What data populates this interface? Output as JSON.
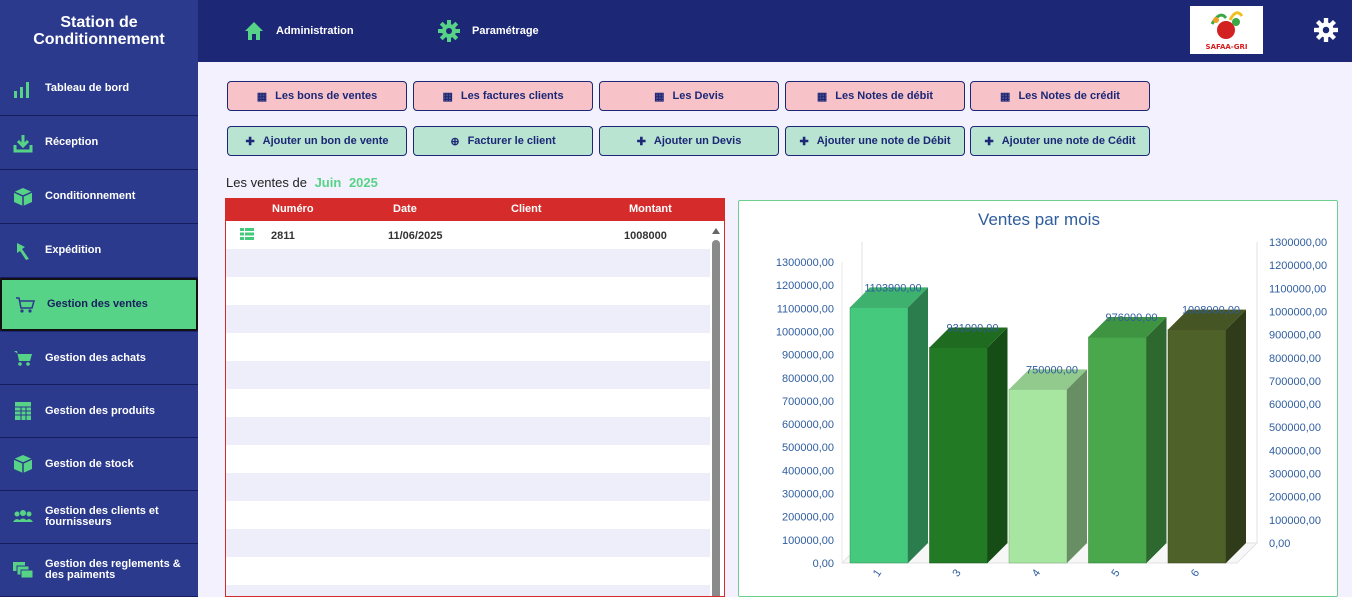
{
  "app": {
    "title_line1": "Station de",
    "title_line2": "Conditionnement",
    "logo_text": "SAFAA-GRI"
  },
  "topnav": {
    "administration": "Administration",
    "parametrage": "Paramétrage"
  },
  "sidebar": {
    "items": [
      {
        "label": "Tableau de bord",
        "icon": "bar-chart-icon"
      },
      {
        "label": "Réception",
        "icon": "download-icon"
      },
      {
        "label": "Conditionnement",
        "icon": "box-icon"
      },
      {
        "label": "Expédition",
        "icon": "arrow-icon"
      },
      {
        "label": "Gestion des ventes",
        "icon": "cart-icon",
        "active": true
      },
      {
        "label": "Gestion des achats",
        "icon": "cart-icon"
      },
      {
        "label": "Gestion des produits",
        "icon": "table-icon"
      },
      {
        "label": "Gestion de stock",
        "icon": "box-icon"
      },
      {
        "label": "Gestion des clients et fournisseurs",
        "icon": "users-icon"
      },
      {
        "label": "Gestion des reglements & des paiments",
        "icon": "money-icon"
      }
    ]
  },
  "actions": {
    "list_buttons": [
      "Les bons de ventes",
      "Les factures clients",
      "Les Devis",
      "Les Notes de débit",
      "Les Notes de crédit"
    ],
    "add_buttons": [
      "Ajouter un bon de vente",
      "Facturer le client",
      "Ajouter un Devis",
      "Ajouter une note de Débit",
      "Ajouter une note de Cédit"
    ]
  },
  "sales": {
    "prefix": "Les ventes de",
    "month": "Juin",
    "year": "2025"
  },
  "table": {
    "columns": [
      "Numéro",
      "Date",
      "Client",
      "Montant"
    ],
    "rows": [
      {
        "numero": "2811",
        "date": "11/06/2025",
        "client": "",
        "montant": "1008000"
      }
    ]
  },
  "colors": {
    "primary": "#1c2776",
    "accent": "#57d387",
    "table_header": "#d52b2b",
    "pink_button": "#f7c3c8",
    "green_button": "#b8e4d1"
  },
  "chart_data": {
    "type": "bar",
    "title": "Ventes par mois",
    "categories": [
      "1",
      "3",
      "4",
      "5",
      "6"
    ],
    "values": [
      1103900,
      931000,
      750000,
      976000,
      1008000
    ],
    "value_labels": [
      "1103900,00",
      "931000,00",
      "750000,00",
      "976000,00",
      "1008000,00"
    ],
    "bar_colors": [
      "#45c97c",
      "#237a24",
      "#a6e6a0",
      "#48a84b",
      "#4e6128"
    ],
    "left_axis": {
      "ylim": [
        0,
        1300000
      ],
      "ticks": [
        "0,00",
        "100000,00",
        "200000,00",
        "300000,00",
        "400000,00",
        "500000,00",
        "600000,00",
        "700000,00",
        "800000,00",
        "900000,00",
        "1000000,00",
        "1100000,00",
        "1200000,00",
        "1300000,00"
      ]
    },
    "right_axis": {
      "ylim": [
        0,
        1300000
      ],
      "ticks": [
        "0,00",
        "100000,00",
        "200000,00",
        "300000,00",
        "400000,00",
        "500000,00",
        "600000,00",
        "700000,00",
        "800000,00",
        "900000,00",
        "1000000,00",
        "1100000,00",
        "1200000,00",
        "1300000,00"
      ]
    },
    "grid": false,
    "style": "3d"
  }
}
